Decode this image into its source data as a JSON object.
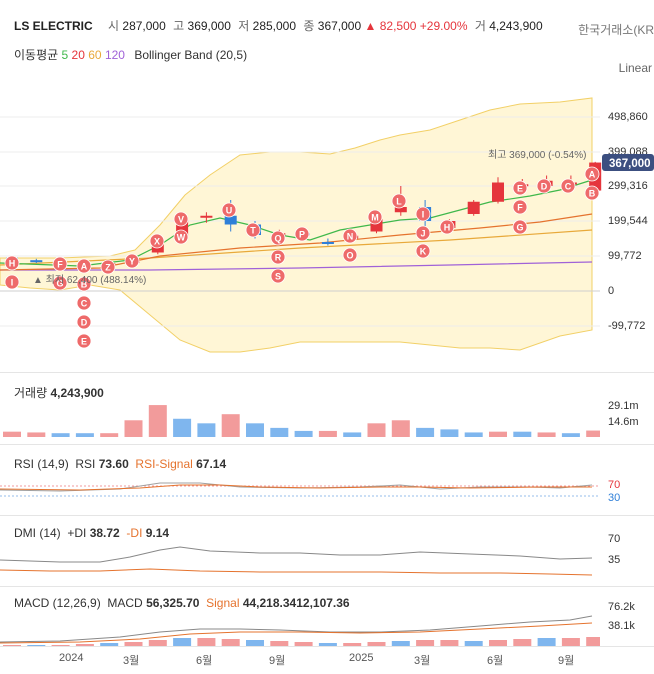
{
  "header": {
    "ticker": "LS ELECTRIC",
    "open_label": "시",
    "open": "287,000",
    "high_label": "고",
    "high": "369,000",
    "low_label": "저",
    "low": "285,000",
    "close_label": "종",
    "close": "367,000",
    "change": "▲ 82,500",
    "change_pct": "+29.00%",
    "volume_label": "거",
    "volume": "4,243,900",
    "exchange": "한국거래소(KRX)"
  },
  "ma_legend": {
    "label": "이동평균",
    "p5": "5",
    "p20": "20",
    "p60": "60",
    "p120": "120",
    "bollinger": "Bollinger Band (20,5)"
  },
  "scale_mode": "Linear",
  "main_axis": {
    "ticks": [
      "498,860",
      "399,088",
      "299,316",
      "199,544",
      "99,772",
      "0",
      "-99,772"
    ],
    "current_price": "367,000",
    "high_annotation": "최고 369,000 (-0.54%)",
    "low_annotation": "▲ 최저 62,400 (488.14%)"
  },
  "volume_panel": {
    "label": "거래량",
    "value": "4,243,900",
    "ticks": [
      "29.1m",
      "14.6m"
    ]
  },
  "rsi_panel": {
    "label": "RSI (14,9)",
    "rsi_label": "RSI",
    "rsi_value": "73.60",
    "signal_label": "RSI-Signal",
    "signal_value": "67.14",
    "ticks": [
      "70",
      "30"
    ]
  },
  "dmi_panel": {
    "label": "DMI (14)",
    "pdi_label": "+DI",
    "pdi_value": "38.72",
    "mdi_label": "-DI",
    "mdi_value": "9.14",
    "ticks": [
      "70",
      "35"
    ]
  },
  "macd_panel": {
    "label": "MACD (12,26,9)",
    "macd_label": "MACD",
    "macd_value": "56,325.70",
    "signal_label": "Signal",
    "signal_value": "44,218.34",
    "hist_value": "12,107.36",
    "ticks": [
      "76.2k",
      "38.1k"
    ]
  },
  "x_axis": [
    "2024",
    "3월",
    "6월",
    "9월",
    "2025",
    "3월",
    "6월",
    "9월"
  ],
  "colors": {
    "up": "#e5353c",
    "down": "#2f7fd8",
    "band": "#fff6d6",
    "ma5": "#3fb84b",
    "ma20": "#e5732e",
    "ma60": "#e8a93a",
    "ma120": "#a062d8"
  },
  "chart_data": {
    "type": "candlestick",
    "title": "LS ELECTRIC",
    "ylim": [
      -120000,
      540000
    ],
    "markers": [
      "H",
      "I",
      "F",
      "G",
      "A",
      "B",
      "C",
      "D",
      "E",
      "Z",
      "Y",
      "X",
      "V",
      "W",
      "U",
      "T",
      "Q",
      "R",
      "S",
      "P",
      "O",
      "N",
      "M",
      "L",
      "K",
      "J",
      "I",
      "H",
      "G",
      "F",
      "E",
      "D",
      "C",
      "B",
      "A"
    ],
    "candles": [
      {
        "o": 95000,
        "h": 98000,
        "l": 85000,
        "c": 90000
      },
      {
        "o": 88000,
        "h": 92000,
        "l": 80000,
        "c": 84000
      },
      {
        "o": 82000,
        "h": 86000,
        "l": 76000,
        "c": 80000
      },
      {
        "o": 78000,
        "h": 82000,
        "l": 70000,
        "c": 76000
      },
      {
        "o": 76000,
        "h": 82000,
        "l": 62400,
        "c": 80000
      },
      {
        "o": 80000,
        "h": 95000,
        "l": 78000,
        "c": 92000
      },
      {
        "o": 110000,
        "h": 160000,
        "l": 105000,
        "c": 150000
      },
      {
        "o": 150000,
        "h": 220000,
        "l": 140000,
        "c": 210000
      },
      {
        "o": 210000,
        "h": 225000,
        "l": 195000,
        "c": 215000
      },
      {
        "o": 215000,
        "h": 260000,
        "l": 170000,
        "c": 190000
      },
      {
        "o": 190000,
        "h": 200000,
        "l": 150000,
        "c": 160000
      },
      {
        "o": 160000,
        "h": 175000,
        "l": 145000,
        "c": 165000
      },
      {
        "o": 165000,
        "h": 180000,
        "l": 155000,
        "c": 160000
      },
      {
        "o": 140000,
        "h": 150000,
        "l": 130000,
        "c": 135000
      },
      {
        "o": 150000,
        "h": 165000,
        "l": 140000,
        "c": 158000
      },
      {
        "o": 170000,
        "h": 215000,
        "l": 165000,
        "c": 205000
      },
      {
        "o": 225000,
        "h": 300000,
        "l": 215000,
        "c": 240000
      },
      {
        "o": 240000,
        "h": 260000,
        "l": 180000,
        "c": 200000
      },
      {
        "o": 180000,
        "h": 205000,
        "l": 170000,
        "c": 200000
      },
      {
        "o": 220000,
        "h": 260000,
        "l": 215000,
        "c": 255000
      },
      {
        "o": 255000,
        "h": 325000,
        "l": 250000,
        "c": 310000
      },
      {
        "o": 300000,
        "h": 320000,
        "l": 285000,
        "c": 305000
      },
      {
        "o": 300000,
        "h": 330000,
        "l": 280000,
        "c": 315000
      },
      {
        "o": 305000,
        "h": 330000,
        "l": 290000,
        "c": 310000
      },
      {
        "o": 287000,
        "h": 369000,
        "l": 285000,
        "c": 367000
      }
    ],
    "volume": [
      {
        "v": 3500000,
        "up": true
      },
      {
        "v": 3000000,
        "up": true
      },
      {
        "v": 2500000,
        "up": false
      },
      {
        "v": 2500000,
        "up": false
      },
      {
        "v": 2500000,
        "up": true
      },
      {
        "v": 11000000,
        "up": true
      },
      {
        "v": 21000000,
        "up": true
      },
      {
        "v": 12000000,
        "up": false
      },
      {
        "v": 9000000,
        "up": false
      },
      {
        "v": 15000000,
        "up": true
      },
      {
        "v": 9000000,
        "up": false
      },
      {
        "v": 6000000,
        "up": false
      },
      {
        "v": 4000000,
        "up": false
      },
      {
        "v": 4000000,
        "up": true
      },
      {
        "v": 3000000,
        "up": false
      },
      {
        "v": 9000000,
        "up": true
      },
      {
        "v": 11000000,
        "up": true
      },
      {
        "v": 6000000,
        "up": false
      },
      {
        "v": 5000000,
        "up": false
      },
      {
        "v": 3000000,
        "up": false
      },
      {
        "v": 3500000,
        "up": true
      },
      {
        "v": 3500000,
        "up": false
      },
      {
        "v": 3000000,
        "up": true
      },
      {
        "v": 2500000,
        "up": false
      },
      {
        "v": 4243900,
        "up": true
      }
    ]
  }
}
